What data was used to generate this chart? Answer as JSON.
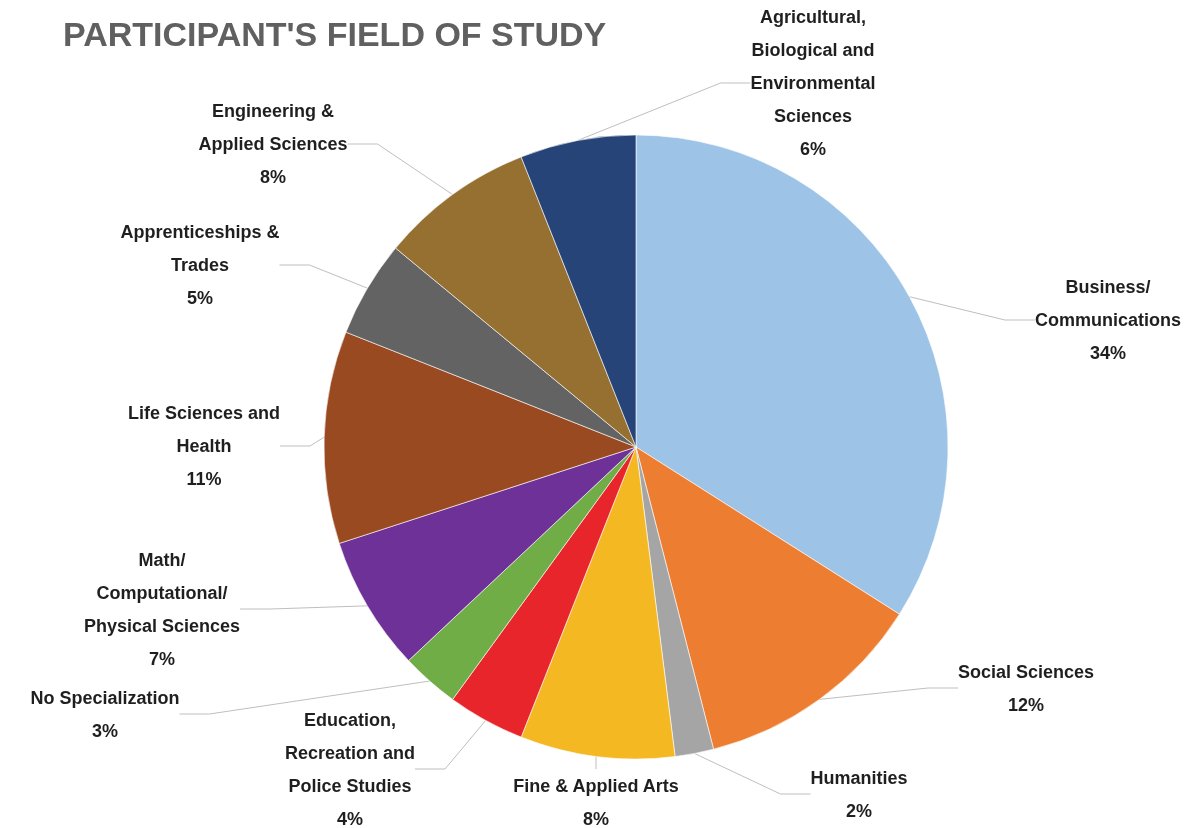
{
  "chart_data": {
    "type": "pie",
    "title": "PARTICIPANT'S FIELD OF STUDY",
    "categories": [
      "Business/ Communications",
      "Social Sciences",
      "Humanities",
      "Fine & Applied Arts",
      "Education, Recreation and Police Studies",
      "No Specialization",
      "Math/ Computational/ Physical Sciences",
      "Life Sciences and Health",
      "Apprenticeships & Trades",
      "Engineering & Applied Sciences",
      "Agricultural, Biological and Environmental Sciences"
    ],
    "values": [
      34,
      12,
      2,
      8,
      4,
      3,
      7,
      11,
      5,
      8,
      6
    ],
    "colors": [
      "#9dc3e6",
      "#ed7d31",
      "#a5a5a5",
      "#f4b823",
      "#e8252b",
      "#70ad47",
      "#6d3198",
      "#9a4a21",
      "#636363",
      "#967030",
      "#264478"
    ],
    "value_labels": [
      "34%",
      "12%",
      "2%",
      "8%",
      "4%",
      "3%",
      "7%",
      "11%",
      "5%",
      "8%",
      "6%"
    ]
  }
}
